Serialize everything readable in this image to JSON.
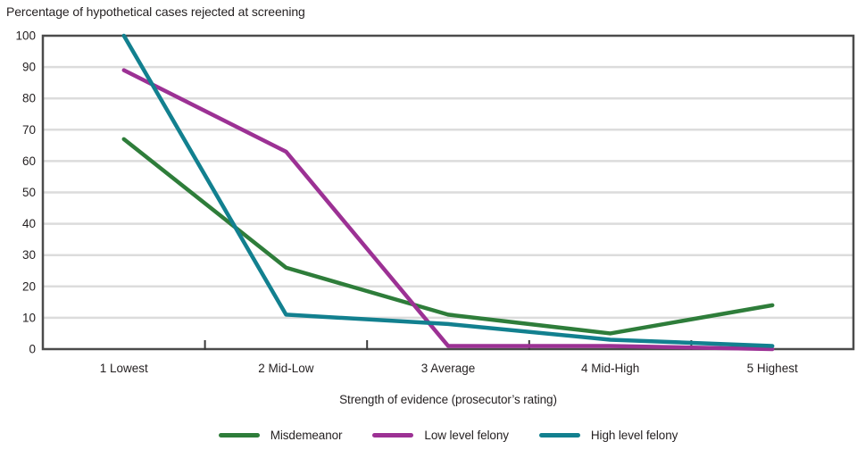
{
  "title": "Percentage of hypothetical cases rejected at screening",
  "x_axis_label": "Strength of evidence (prosecutor’s rating)",
  "colors": {
    "misdemeanor": "#2e7d3a",
    "low_level_felony": "#9c3194",
    "high_level_felony": "#12808f",
    "gridline": "#dcdcdc",
    "axis_border": "#4b4b4b",
    "tick_mark": "#3a3a3a",
    "text": "#231f20"
  },
  "chart_data": {
    "type": "line",
    "title": "Percentage of hypothetical cases rejected at screening",
    "xlabel": "Strength of evidence (prosecutor’s rating)",
    "ylabel": "",
    "categories": [
      "1 Lowest",
      "2 Mid-Low",
      "3 Average",
      "4 Mid-High",
      "5 Highest"
    ],
    "series": [
      {
        "name": "Misdemeanor",
        "color": "#2e7d3a",
        "values": [
          67,
          26,
          11,
          5,
          14
        ]
      },
      {
        "name": "Low level felony",
        "color": "#9c3194",
        "values": [
          89,
          63,
          1,
          1,
          0
        ]
      },
      {
        "name": "High level felony",
        "color": "#12808f",
        "values": [
          100,
          11,
          8,
          3,
          1
        ]
      }
    ],
    "ylim": [
      0,
      100
    ],
    "yticks": [
      0,
      10,
      20,
      30,
      40,
      50,
      60,
      70,
      80,
      90,
      100
    ],
    "grid": true,
    "legend_position": "bottom"
  }
}
